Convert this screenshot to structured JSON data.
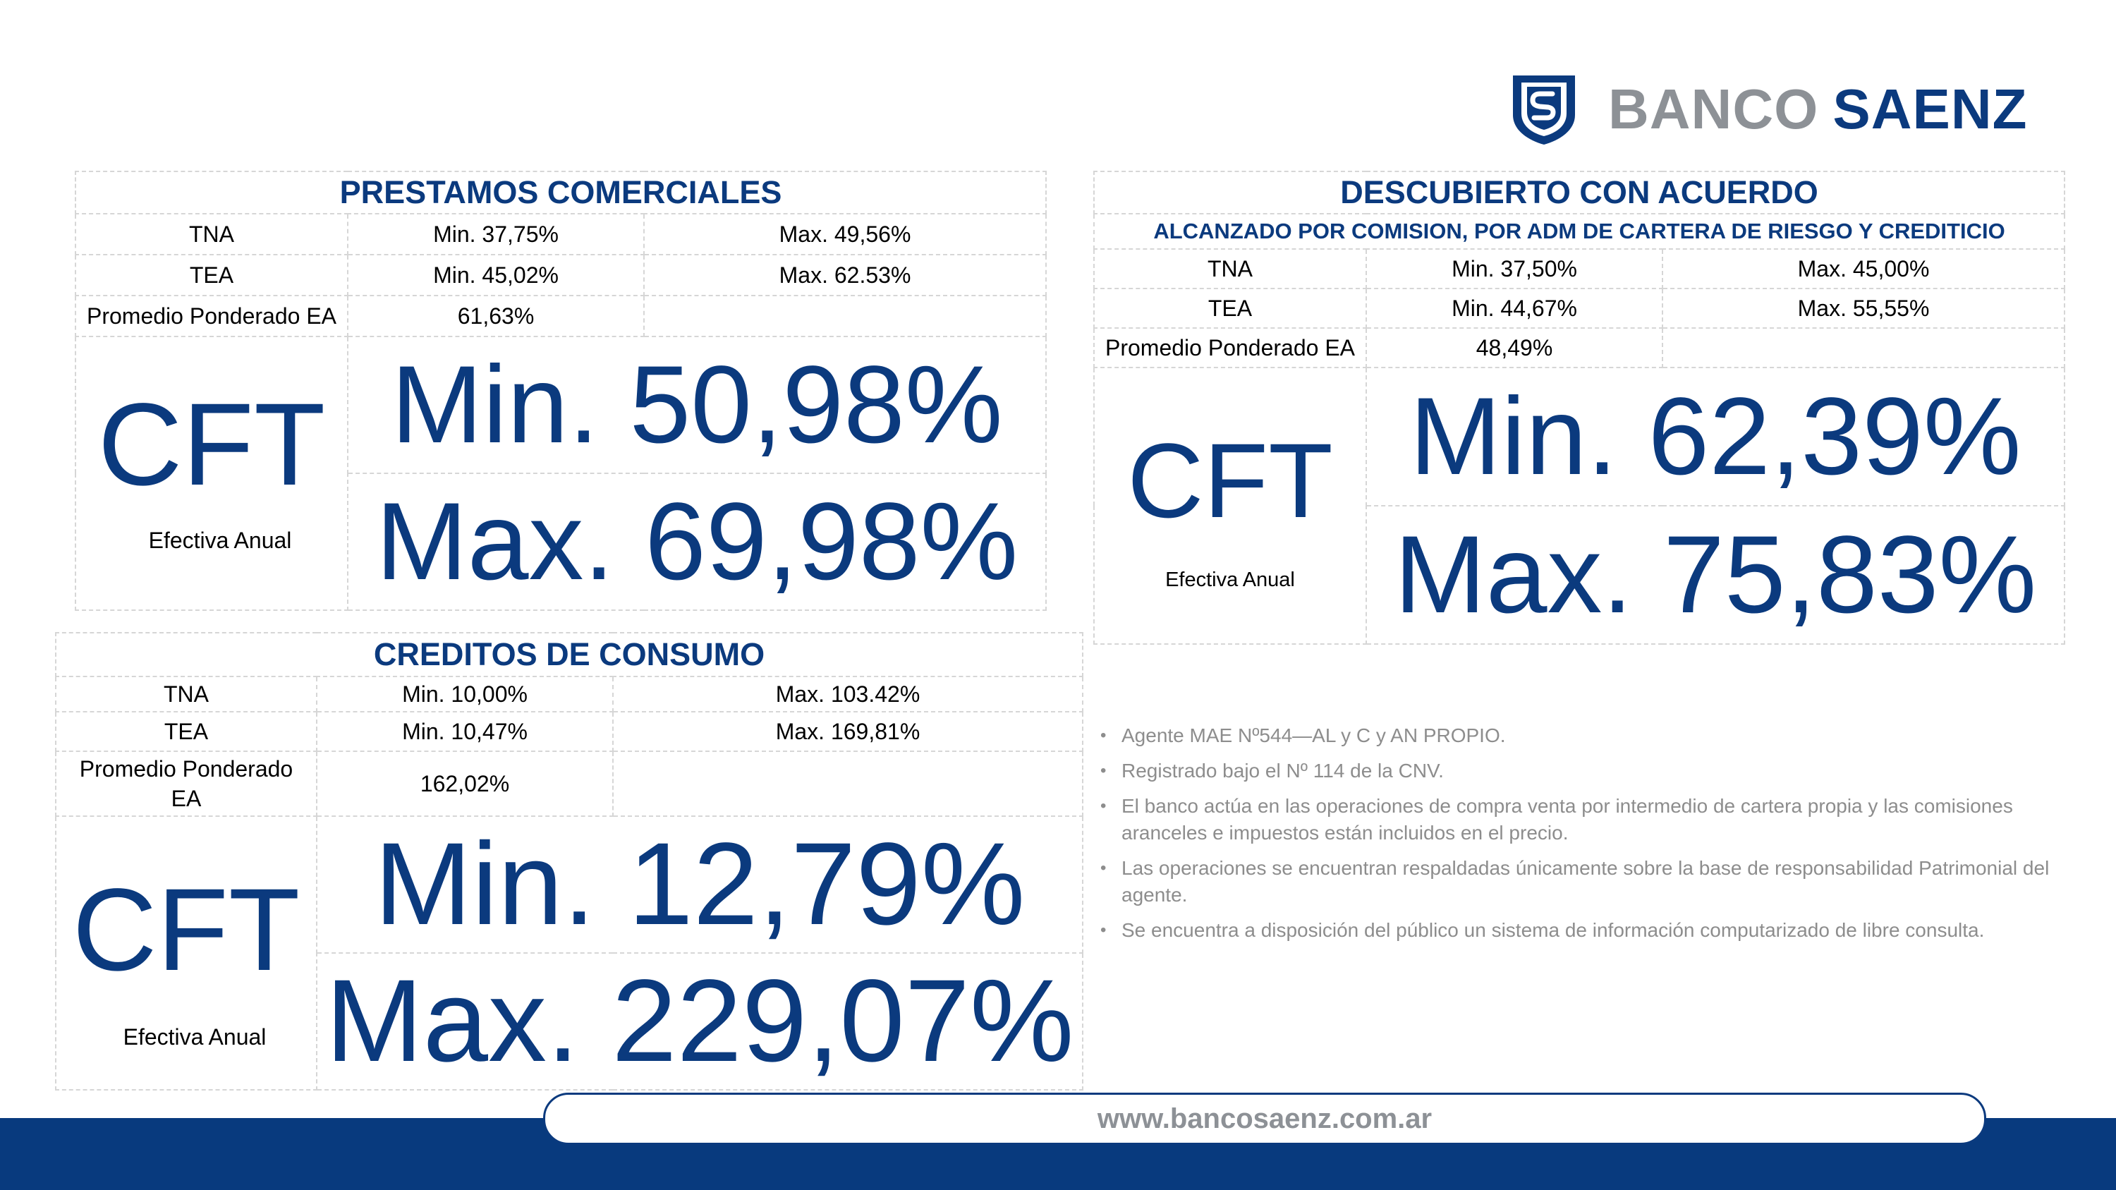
{
  "brand": {
    "word1": "BANCO",
    "word2": "SAENZ",
    "logo_icon": "shield-s-icon",
    "color_blue": "#0b3a7e",
    "color_gray": "#8d9196"
  },
  "comerciales": {
    "title": "PRESTAMOS COMERCIALES",
    "tna": {
      "label": "TNA",
      "min": "Min. 37,75%",
      "max": "Max. 49,56%"
    },
    "tea": {
      "label": "TEA",
      "min": "Min. 45,02%",
      "max": "Max. 62.53%"
    },
    "ppea": {
      "label": "Promedio Ponderado EA",
      "value": "61,63%"
    },
    "cft": {
      "label": "CFT",
      "sublabel": "Efectiva Anual",
      "min": "Min. 50,98%",
      "max": "Max. 69,98%"
    }
  },
  "descubierto": {
    "title": "DESCUBIERTO CON ACUERDO",
    "subtitle": "ALCANZADO POR COMISION, POR ADM DE CARTERA DE RIESGO Y CREDITICIO",
    "tna": {
      "label": "TNA",
      "min": "Min. 37,50%",
      "max": "Max. 45,00%"
    },
    "tea": {
      "label": "TEA",
      "min": "Min. 44,67%",
      "max": "Max. 55,55%"
    },
    "ppea": {
      "label": "Promedio Ponderado EA",
      "value": "48,49%"
    },
    "cft": {
      "label": "CFT",
      "sublabel": "Efectiva Anual",
      "min": "Min. 62,39%",
      "max": "Max. 75,83%"
    }
  },
  "consumo": {
    "title": "CREDITOS DE CONSUMO",
    "tna": {
      "label": "TNA",
      "min": "Min. 10,00%",
      "max": "Max. 103.42%"
    },
    "tea": {
      "label": "TEA",
      "min": "Min. 10,47%",
      "max": "Max. 169,81%"
    },
    "ppea": {
      "label_line1": "Promedio Ponderado",
      "label_line2": "EA",
      "value": "162,02%"
    },
    "cft": {
      "label": "CFT",
      "sublabel": "Efectiva Anual",
      "min": "Min. 12,79%",
      "max": "Max. 229,07%"
    }
  },
  "notes": [
    "Agente MAE Nº544—AL y C y AN PROPIO.",
    "Registrado bajo el Nº 114 de la CNV.",
    "El banco actúa en las operaciones de compra venta por intermedio de cartera propia y las comisiones aranceles e impuestos están incluidos en el precio.",
    "Las operaciones se encuentran respaldadas únicamente sobre la base de responsabilidad Patrimonial del agente.",
    "Se encuentra a disposición del público un sistema de información  computarizado de libre consulta."
  ],
  "footer": {
    "url": "www.bancosaenz.com.ar"
  }
}
